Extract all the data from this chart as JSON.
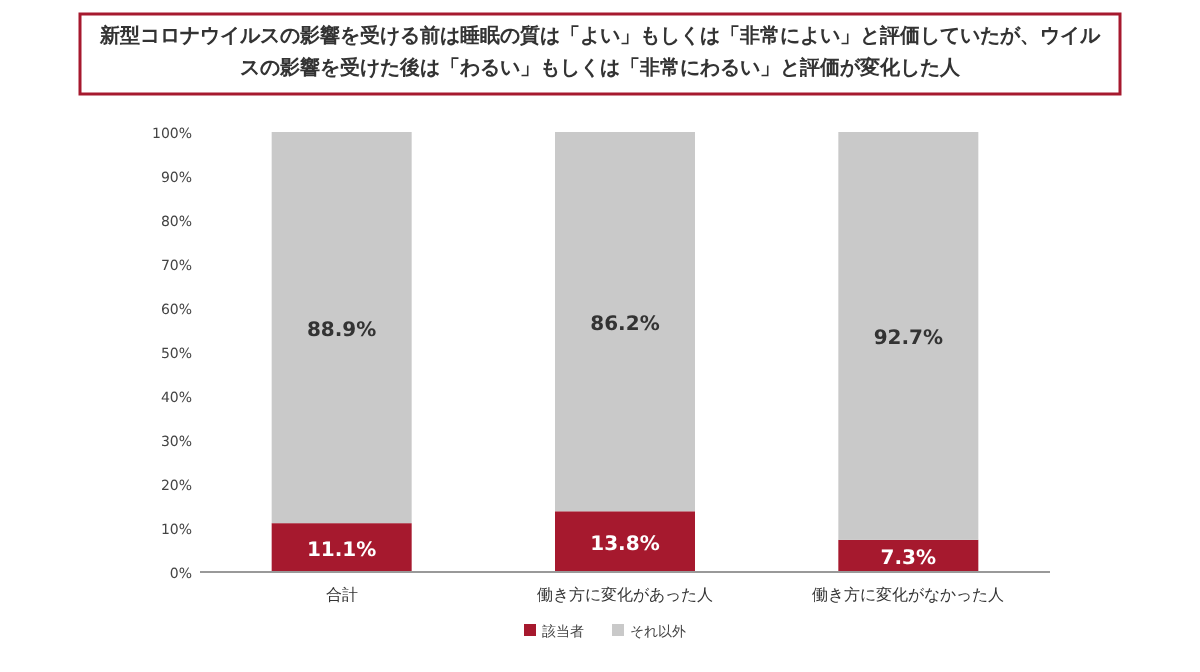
{
  "chart_data": {
    "type": "bar",
    "stacked": true,
    "title": "新型コロナウイルスの影響を受ける前は睡眠の質は「よい」もしくは「非常によい」と評価していたが、ウイルスの影響を受けた後は「わるい」もしくは「非常にわるい」と評価が変化した人",
    "categories": [
      "合計",
      "働き方に変化があった人",
      "働き方に変化がなかった人"
    ],
    "series": [
      {
        "name": "該当者",
        "color": "#a6192e",
        "values": [
          11.1,
          13.8,
          7.3
        ],
        "value_labels": [
          "11.1%",
          "13.8%",
          "7.3%"
        ]
      },
      {
        "name": "それ以外",
        "color": "#c9c9c9",
        "values": [
          88.9,
          86.2,
          92.7
        ],
        "value_labels": [
          "88.9%",
          "86.2%",
          "92.7%"
        ]
      }
    ],
    "ylim": [
      0,
      100
    ],
    "yticks": [
      {
        "value": 0,
        "label": "0%"
      },
      {
        "value": 10,
        "label": "10%"
      },
      {
        "value": 20,
        "label": "20%"
      },
      {
        "value": 30,
        "label": "30%"
      },
      {
        "value": 40,
        "label": "40%"
      },
      {
        "value": 50,
        "label": "50%"
      },
      {
        "value": 60,
        "label": "60%"
      },
      {
        "value": 70,
        "label": "70%"
      },
      {
        "value": 80,
        "label": "80%"
      },
      {
        "value": 90,
        "label": "90%"
      },
      {
        "value": 100,
        "label": "100%"
      }
    ],
    "grid": false,
    "legend": "bottom"
  }
}
